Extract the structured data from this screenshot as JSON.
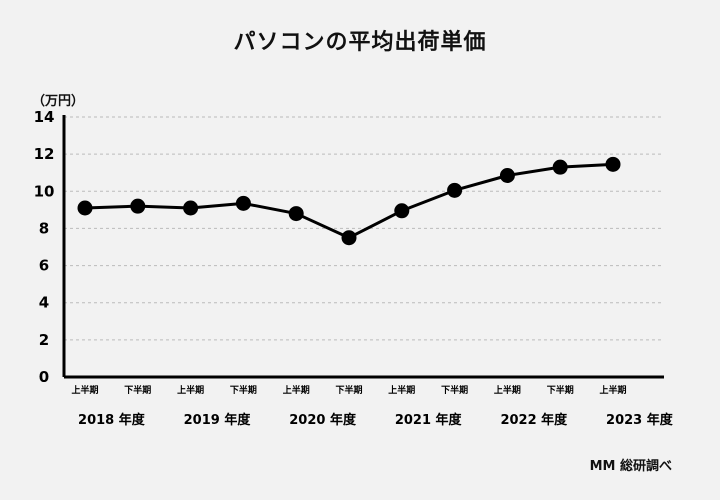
{
  "chart_data": {
    "type": "line",
    "title": "パソコンの平均出荷単価",
    "unit_label": "（万円）",
    "source": "MM 総研調べ",
    "ylim": [
      0,
      14
    ],
    "yticks": [
      0,
      2,
      4,
      6,
      8,
      10,
      12,
      14
    ],
    "grid": true,
    "x": [
      "上半期",
      "下半期",
      "上半期",
      "下半期",
      "上半期",
      "下半期",
      "上半期",
      "下半期",
      "上半期",
      "下半期",
      "上半期"
    ],
    "year_labels": [
      "2018 年度",
      "2019 年度",
      "2020 年度",
      "2021 年度",
      "2022 年度",
      "2023 年度"
    ],
    "values": [
      9.1,
      9.2,
      9.1,
      9.35,
      8.8,
      7.5,
      8.95,
      10.05,
      10.85,
      11.3,
      11.45
    ],
    "colors": {
      "line": "#000000",
      "grid": "#bbbbbb",
      "background": "#f2f2f2"
    }
  }
}
